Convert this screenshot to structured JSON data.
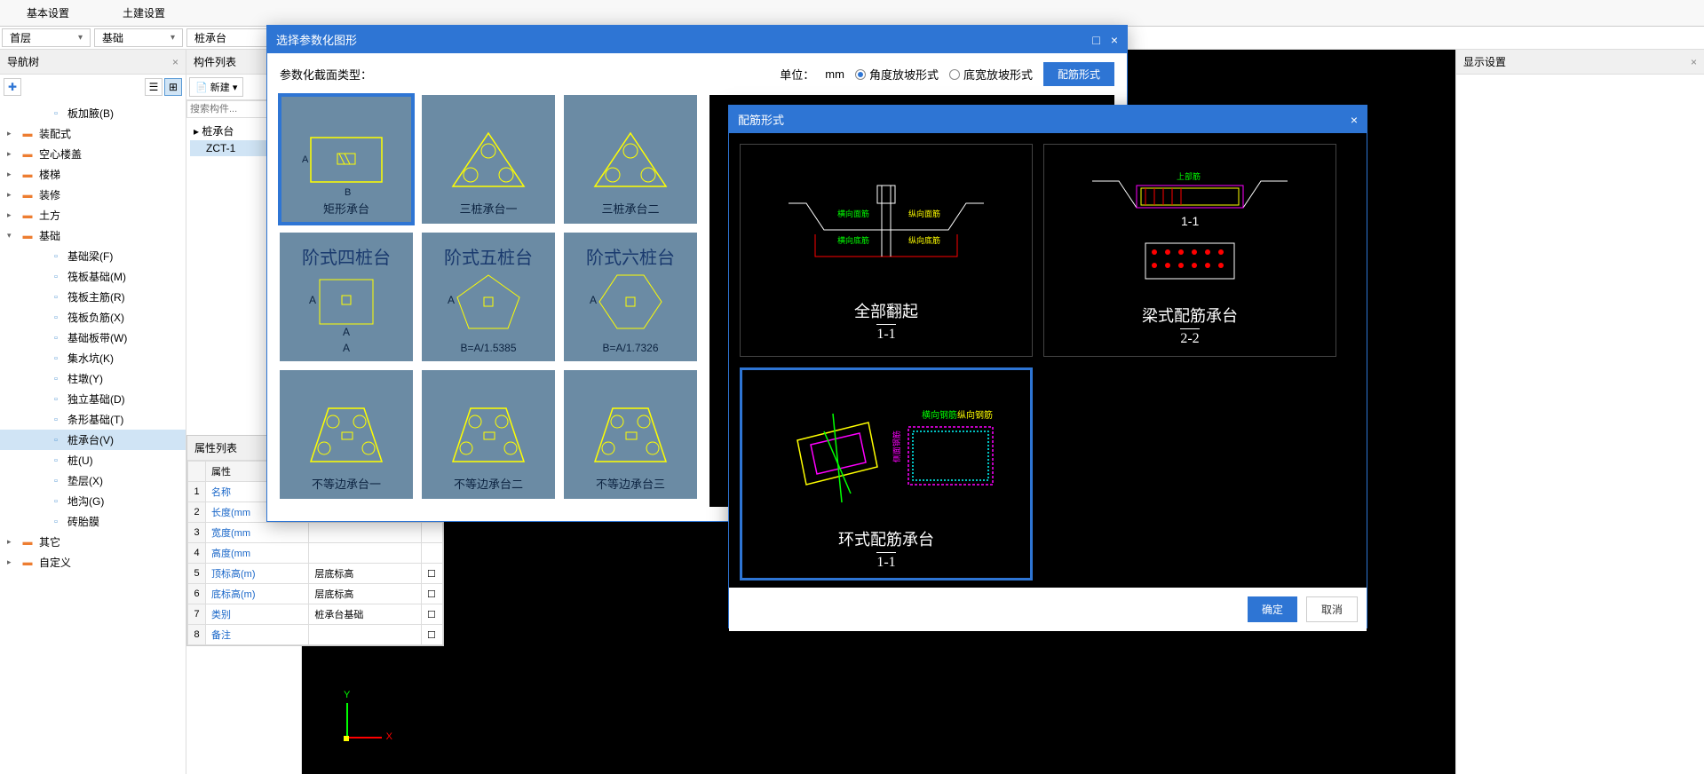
{
  "ribbon": {
    "tabs": [
      "基本设置",
      "土建设置"
    ]
  },
  "dropdowns": {
    "floor": "首层",
    "category": "基础",
    "type": "桩承台"
  },
  "nav": {
    "title": "导航树",
    "items": [
      {
        "label": "板加腋(B)",
        "level": 2,
        "icon": "filter"
      },
      {
        "label": "装配式",
        "level": 1,
        "expand": "+"
      },
      {
        "label": "空心楼盖",
        "level": 1,
        "expand": "+"
      },
      {
        "label": "楼梯",
        "level": 1,
        "expand": "+"
      },
      {
        "label": "装修",
        "level": 1,
        "expand": "+"
      },
      {
        "label": "土方",
        "level": 1,
        "expand": "+"
      },
      {
        "label": "基础",
        "level": 1,
        "expand": "-"
      },
      {
        "label": "基础梁(F)",
        "level": 2,
        "icon": "pencil"
      },
      {
        "label": "筏板基础(M)",
        "level": 2,
        "icon": "grid"
      },
      {
        "label": "筏板主筋(R)",
        "level": 2,
        "icon": "grid2"
      },
      {
        "label": "筏板负筋(X)",
        "level": 2,
        "icon": "grid3"
      },
      {
        "label": "基础板带(W)",
        "level": 2,
        "icon": "bars"
      },
      {
        "label": "集水坑(K)",
        "level": 2,
        "icon": "pit"
      },
      {
        "label": "柱墩(Y)",
        "level": 2,
        "icon": "pier"
      },
      {
        "label": "独立基础(D)",
        "level": 2,
        "icon": "iso"
      },
      {
        "label": "条形基础(T)",
        "level": 2,
        "icon": "strip"
      },
      {
        "label": "桩承台(V)",
        "level": 2,
        "icon": "cap",
        "selected": true
      },
      {
        "label": "桩(U)",
        "level": 2,
        "icon": "pile"
      },
      {
        "label": "垫层(X)",
        "level": 2,
        "icon": "bed"
      },
      {
        "label": "地沟(G)",
        "level": 2,
        "icon": "trench"
      },
      {
        "label": "砖胎膜",
        "level": 2,
        "icon": "brick"
      },
      {
        "label": "其它",
        "level": 1,
        "expand": "+"
      },
      {
        "label": "自定义",
        "level": 1,
        "expand": "+"
      }
    ]
  },
  "comp": {
    "title": "构件列表",
    "new_btn": "新建",
    "search_placeholder": "搜索构件...",
    "root": "桩承台",
    "item": "ZCT-1"
  },
  "props": {
    "title": "属性列表",
    "header_name": "属性",
    "rows": [
      {
        "n": "1",
        "name": "名称",
        "val": ""
      },
      {
        "n": "2",
        "name": "长度(mm",
        "val": ""
      },
      {
        "n": "3",
        "name": "宽度(mm",
        "val": ""
      },
      {
        "n": "4",
        "name": "高度(mm",
        "val": ""
      },
      {
        "n": "5",
        "name": "顶标高(m)",
        "val": "层底标高",
        "chk": true
      },
      {
        "n": "6",
        "name": "底标高(m)",
        "val": "层底标高",
        "chk": true
      },
      {
        "n": "7",
        "name": "类别",
        "val": "桩承台基础",
        "chk": true
      },
      {
        "n": "8",
        "name": "备注",
        "val": "",
        "chk": true
      }
    ]
  },
  "display": {
    "title": "显示设置"
  },
  "modal1": {
    "title": "选择参数化图形",
    "section_label": "参数化截面类型：",
    "unit_label": "单位：",
    "unit_val": "mm",
    "radio1": "角度放坡形式",
    "radio2": "底宽放坡形式",
    "btn_rebar": "配筋形式",
    "shapes": [
      {
        "label": "矩形承台",
        "selected": true
      },
      {
        "label": "三桩承台一"
      },
      {
        "label": "三桩承台二"
      },
      {
        "toplabel": "阶式四桩台",
        "sublabel": "A"
      },
      {
        "toplabel": "阶式五桩台",
        "sublabel": "B=A/1.5385"
      },
      {
        "toplabel": "阶式六桩台",
        "sublabel": "B=A/1.7326"
      },
      {
        "label": "不等边承台一"
      },
      {
        "label": "不等边承台二"
      },
      {
        "label": "不等边承台三"
      }
    ]
  },
  "modal2": {
    "title": "配筋形式",
    "options": [
      {
        "label": "全部翻起",
        "sub": "1-1"
      },
      {
        "label": "梁式配筋承台",
        "sub": "2-2"
      },
      {
        "label": "环式配筋承台",
        "sub": "1-1",
        "selected": true
      }
    ],
    "btn_ok": "确定",
    "btn_cancel": "取消"
  },
  "colors": {
    "primary": "#2e75d4",
    "cell_bg": "#6b8ba4",
    "yellow": "#ffff00",
    "green": "#00ff00",
    "red": "#ff0000",
    "magenta": "#ff00ff",
    "cyan": "#00ffff"
  }
}
